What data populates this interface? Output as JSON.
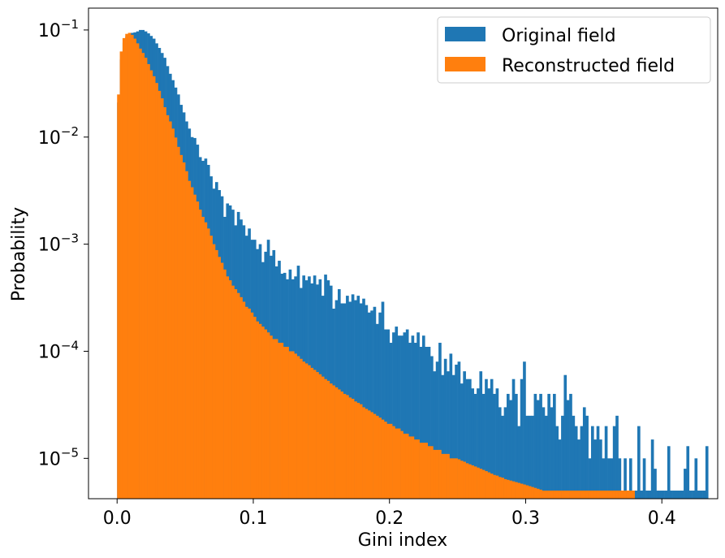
{
  "chart_data": {
    "type": "bar",
    "subtype": "overlaid-histogram",
    "xlabel": "Gini index",
    "ylabel": "Probability",
    "y_scale": "log",
    "xlim": [
      -0.021,
      0.441
    ],
    "ylim": [
      4.2e-06,
      0.16
    ],
    "x_ticks": [
      0.0,
      0.1,
      0.2,
      0.3,
      0.4
    ],
    "x_tick_labels": [
      "0.0",
      "0.1",
      "0.2",
      "0.3",
      "0.4"
    ],
    "y_ticks": [
      1e-05,
      0.0001,
      0.001,
      0.01,
      0.1
    ],
    "y_tick_bases": [
      "10",
      "10",
      "10",
      "10",
      "10"
    ],
    "y_tick_exponents": [
      "−5",
      "−4",
      "−3",
      "−2",
      "−1"
    ],
    "grid": false,
    "legend_position": "top-right",
    "series": [
      {
        "name": "Original field",
        "color": "#1f77b4",
        "bin_start": 0.0,
        "bin_width": 0.002,
        "values": [
          0.021,
          0.053,
          0.076,
          0.087,
          0.092,
          0.094,
          0.095,
          0.097,
          0.1,
          0.1,
          0.097,
          0.093,
          0.088,
          0.083,
          0.075,
          0.068,
          0.061,
          0.055,
          0.046,
          0.039,
          0.034,
          0.029,
          0.025,
          0.02,
          0.017,
          0.014,
          0.012,
          0.01,
          0.0098,
          0.0085,
          0.0065,
          0.006,
          0.0063,
          0.0055,
          0.0043,
          0.0033,
          0.0038,
          0.0032,
          0.0028,
          0.0018,
          0.0024,
          0.0023,
          0.0021,
          0.0015,
          0.002,
          0.0017,
          0.0015,
          0.0012,
          0.0014,
          0.0011,
          0.0011,
          0.0009,
          0.001,
          0.00068,
          0.00085,
          0.0011,
          0.00078,
          0.00088,
          0.00062,
          0.0007,
          0.00053,
          0.00054,
          0.00047,
          0.00058,
          0.00047,
          0.0005,
          0.00063,
          0.00039,
          0.00051,
          0.00046,
          0.0005,
          0.00043,
          0.00051,
          0.00042,
          0.00047,
          0.00033,
          0.00052,
          0.00046,
          0.00041,
          0.00025,
          0.0003,
          0.00038,
          0.00028,
          0.00028,
          0.00033,
          0.00029,
          0.00034,
          0.0003,
          0.00033,
          0.00028,
          0.00031,
          0.00027,
          0.00023,
          0.00024,
          0.00026,
          0.00018,
          0.00023,
          0.00029,
          0.00016,
          0.00016,
          0.00012,
          0.00015,
          0.00017,
          0.00014,
          0.00014,
          0.00015,
          0.00016,
          0.00012,
          0.00014,
          0.00012,
          0.00015,
          0.00011,
          0.00014,
          0.00011,
          0.00011,
          9e-05,
          6.5e-05,
          8e-05,
          0.00012,
          6e-05,
          8.5e-05,
          6.5e-05,
          9.5e-05,
          6e-05,
          7.5e-05,
          8e-05,
          5e-05,
          6.5e-05,
          5.5e-05,
          5.5e-05,
          4.5e-05,
          4e-05,
          4.5e-05,
          6.5e-05,
          4e-05,
          5.5e-05,
          4.5e-05,
          5.5e-05,
          4e-05,
          4.5e-05,
          3e-05,
          2.5e-05,
          3e-05,
          4e-05,
          3.5e-05,
          5.5e-05,
          4e-05,
          2e-05,
          5.5e-05,
          8e-05,
          2.5e-05,
          2.5e-05,
          2.5e-05,
          4e-05,
          3.5e-05,
          4e-05,
          3e-05,
          2.5e-05,
          4e-05,
          3e-05,
          4e-05,
          2e-05,
          1.5e-05,
          2.5e-05,
          6e-05,
          3.5e-05,
          4e-05,
          2.5e-05,
          2e-05,
          1.5e-05,
          2e-05,
          3e-05,
          2.5e-05,
          1e-05,
          2e-05,
          1.5e-05,
          2e-05,
          1.5e-05,
          1e-05,
          2e-05,
          1e-05,
          1e-05,
          2e-05,
          2.5e-05,
          1e-05,
          5e-06,
          1e-05,
          5e-06,
          1e-05,
          5e-06,
          5e-06,
          2e-05,
          5e-06,
          1e-05,
          5e-06,
          5e-06,
          1.5e-05,
          8e-06,
          5e-06,
          5e-06,
          5e-06,
          5e-06,
          1.3e-05,
          5e-06,
          5e-06,
          5e-06,
          5e-06,
          5e-06,
          8e-06,
          1.3e-05,
          5e-06,
          5e-06,
          1e-05,
          5e-06,
          5e-06,
          5e-06,
          1.3e-05
        ]
      },
      {
        "name": "Reconstructed field",
        "color": "#ff7f0e",
        "bin_start": 0.0,
        "bin_width": 0.002,
        "values": [
          0.025,
          0.063,
          0.084,
          0.092,
          0.094,
          0.09,
          0.083,
          0.075,
          0.067,
          0.061,
          0.055,
          0.048,
          0.042,
          0.037,
          0.032,
          0.027,
          0.023,
          0.019,
          0.016,
          0.014,
          0.012,
          0.0099,
          0.0081,
          0.0068,
          0.0058,
          0.0048,
          0.0039,
          0.0034,
          0.0029,
          0.0025,
          0.0021,
          0.0018,
          0.0016,
          0.0014,
          0.0012,
          0.001,
          0.00088,
          0.00076,
          0.00067,
          0.00058,
          0.0005,
          0.00046,
          0.00041,
          0.00038,
          0.00035,
          0.00032,
          0.00029,
          0.00026,
          0.00025,
          0.00023,
          0.00021,
          0.00019,
          0.00018,
          0.00017,
          0.00016,
          0.00015,
          0.00014,
          0.00013,
          0.00013,
          0.00012,
          0.00012,
          0.00011,
          0.00011,
          0.0001,
          0.0001,
          9.5e-05,
          9e-05,
          8.5e-05,
          8e-05,
          7.7e-05,
          7.4e-05,
          7e-05,
          6.7e-05,
          6.4e-05,
          6.1e-05,
          5.8e-05,
          5.5e-05,
          5.3e-05,
          5e-05,
          4.8e-05,
          4.6e-05,
          4.4e-05,
          4.2e-05,
          4e-05,
          3.9e-05,
          3.7e-05,
          3.6e-05,
          3.4e-05,
          3.3e-05,
          3.2e-05,
          3e-05,
          2.9e-05,
          2.8e-05,
          2.7e-05,
          2.6e-05,
          2.5e-05,
          2.4e-05,
          2.3e-05,
          2.2e-05,
          2.1e-05,
          2.1e-05,
          2e-05,
          1.9e-05,
          1.9e-05,
          1.8e-05,
          1.7e-05,
          1.7e-05,
          1.6e-05,
          1.6e-05,
          1.5e-05,
          1.5e-05,
          1.4e-05,
          1.4e-05,
          1.4e-05,
          1.3e-05,
          1.3e-05,
          1.2e-05,
          1.2e-05,
          1.2e-05,
          1.1e-05,
          1.1e-05,
          1.1e-05,
          1e-05,
          1e-05,
          1e-05,
          9.8e-06,
          9.5e-06,
          9.3e-06,
          9e-06,
          8.8e-06,
          8.6e-06,
          8.4e-06,
          8.2e-06,
          8e-06,
          7.8e-06,
          7.6e-06,
          7.4e-06,
          7.2e-06,
          7e-06,
          6.9e-06,
          6.7e-06,
          6.6e-06,
          6.4e-06,
          6.3e-06,
          6.2e-06,
          6.1e-06,
          6e-06,
          5.9e-06,
          5.8e-06,
          5.7e-06,
          5.6e-06,
          5.5e-06,
          5.4e-06,
          5.3e-06,
          5.2e-06,
          5.1e-06,
          5e-06,
          5e-06,
          5e-06,
          5e-06,
          5e-06,
          5e-06,
          5e-06,
          5e-06,
          5e-06,
          5e-06,
          5e-06,
          5e-06,
          5e-06,
          5e-06,
          5e-06,
          5e-06,
          5e-06,
          5e-06,
          5e-06,
          5e-06,
          5e-06,
          5e-06,
          5e-06,
          5e-06,
          5e-06,
          5e-06,
          5e-06,
          5e-06,
          5e-06,
          5e-06,
          5e-06,
          5e-06,
          5e-06,
          5e-06
        ]
      }
    ]
  }
}
